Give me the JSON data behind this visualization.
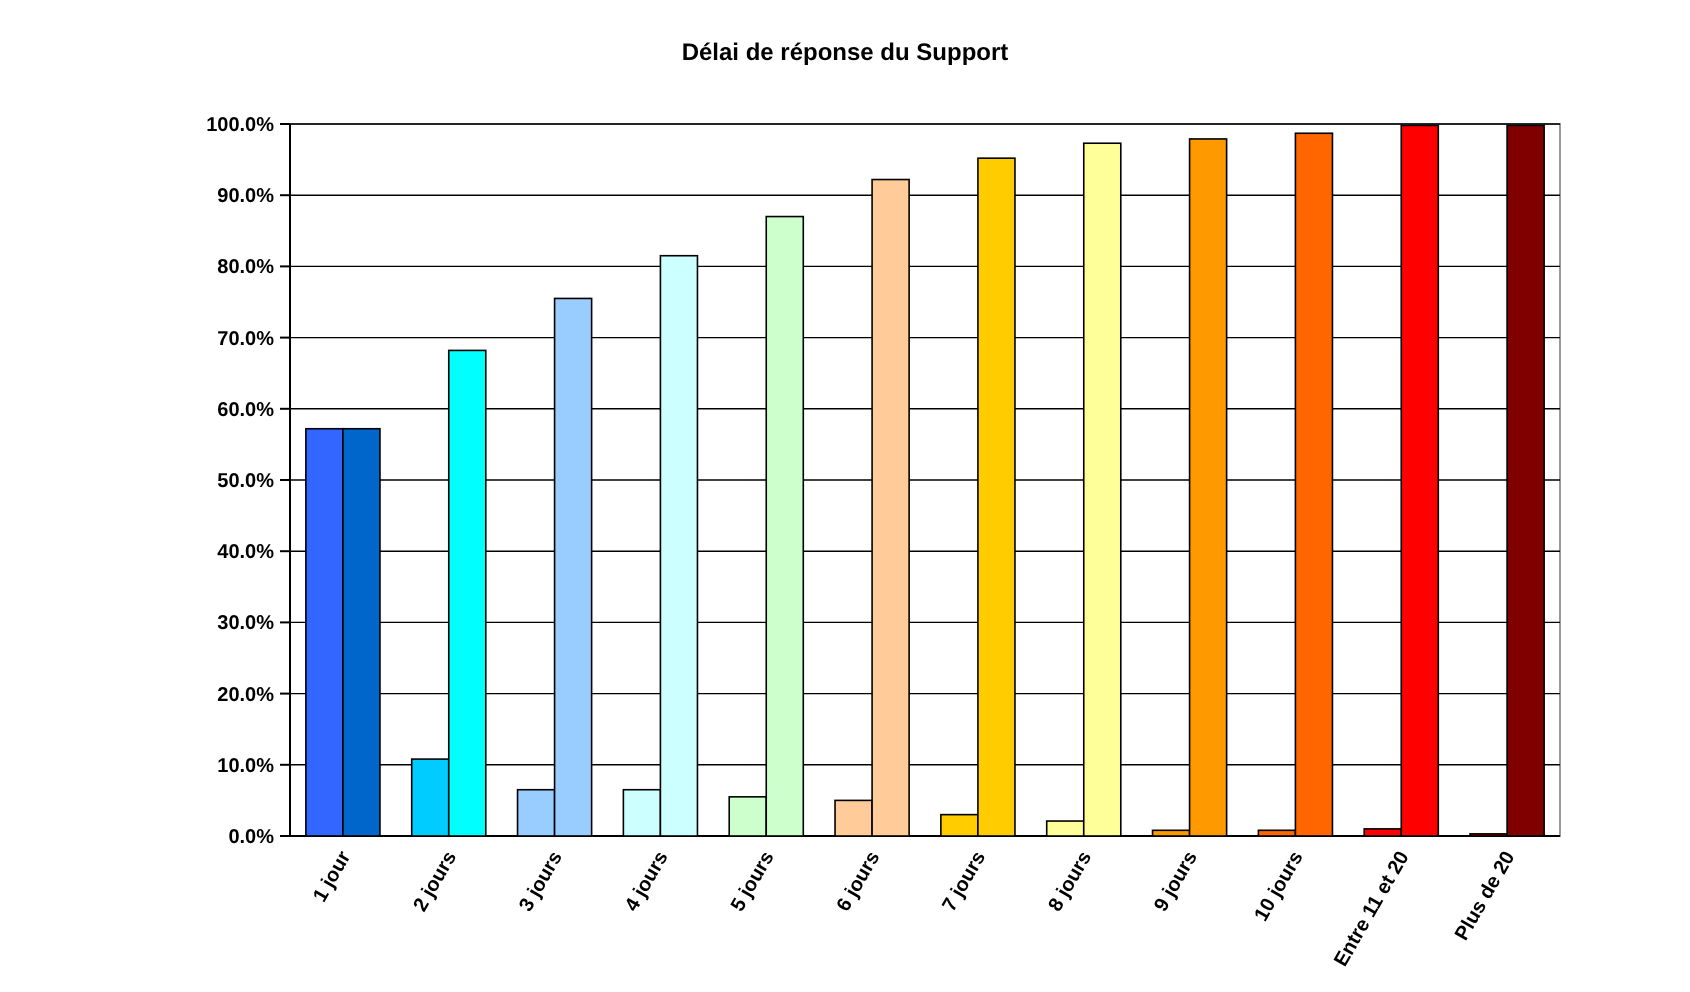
{
  "chart_data": {
    "type": "bar",
    "title": "Délai de réponse du Support",
    "categories": [
      "1 jour",
      "2 jours",
      "3 jours",
      "4 jours",
      "5 jours",
      "6 jours",
      "7 jours",
      "8 jours",
      "9 jours",
      "10 jours",
      "Entre 11 et 20",
      "Plus de 20"
    ],
    "series": [
      {
        "colors": [
          "#3366ff",
          "#00ccff",
          "#99ccff",
          "#ccffff",
          "#ccffcc",
          "#ffcc99",
          "#ffcc00",
          "#ffff99",
          "#ff9900",
          "#ff6600",
          "#ff0000",
          "#cc0000"
        ],
        "values": [
          57.2,
          10.8,
          6.5,
          6.5,
          5.5,
          5.0,
          3.0,
          2.1,
          0.8,
          0.8,
          1.0,
          0.3
        ]
      },
      {
        "colors": [
          "#0066cc",
          "#00ffff",
          "#99ccff",
          "#ccffff",
          "#ccffcc",
          "#ffcc99",
          "#ffcc00",
          "#ffff99",
          "#ff9900",
          "#ff6600",
          "#ff0000",
          "#800000"
        ],
        "values": [
          57.2,
          68.2,
          75.5,
          81.5,
          87.0,
          92.2,
          95.2,
          97.3,
          97.9,
          98.7,
          99.8,
          99.8
        ]
      }
    ],
    "ylim": [
      0,
      100
    ],
    "yticks": [
      {
        "value": 0,
        "label": "0.0%"
      },
      {
        "value": 10,
        "label": "10.0%"
      },
      {
        "value": 20,
        "label": "20.0%"
      },
      {
        "value": 30,
        "label": "30.0%"
      },
      {
        "value": 40,
        "label": "40.0%"
      },
      {
        "value": 50,
        "label": "50.0%"
      },
      {
        "value": 60,
        "label": "60.0%"
      },
      {
        "value": 70,
        "label": "70.0%"
      },
      {
        "value": 80,
        "label": "80.0%"
      },
      {
        "value": 90,
        "label": "90.0%"
      },
      {
        "value": 100,
        "label": "100.0%"
      }
    ],
    "grid": "y"
  }
}
